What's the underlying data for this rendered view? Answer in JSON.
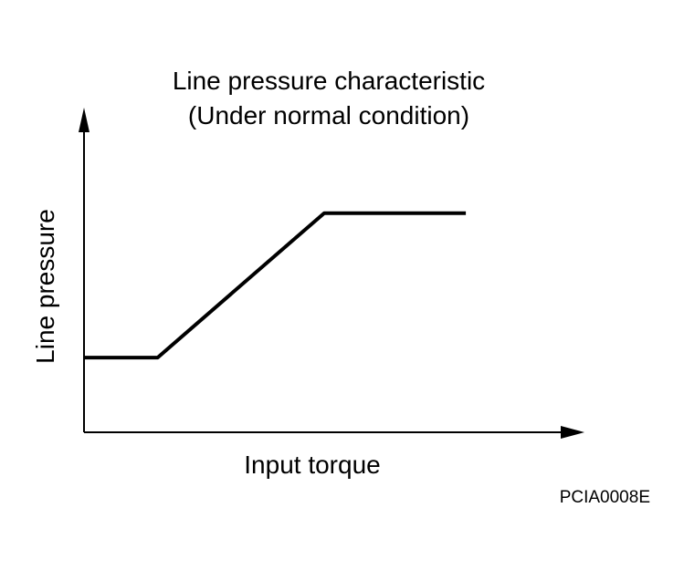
{
  "chart_data": {
    "type": "line",
    "title": "Line pressure characteristic",
    "subtitle": "(Under normal condition)",
    "xlabel": "Input torque",
    "ylabel": "Line pressure",
    "xlim": [
      0,
      10
    ],
    "ylim": [
      0,
      10
    ],
    "x": [
      0,
      1.47,
      4.8,
      7.63
    ],
    "y": [
      2.3,
      2.3,
      6.75,
      6.75
    ],
    "grid": false,
    "colors": {
      "line": "#000000",
      "axis": "#000000"
    }
  },
  "figure_code": "PCIA0008E"
}
